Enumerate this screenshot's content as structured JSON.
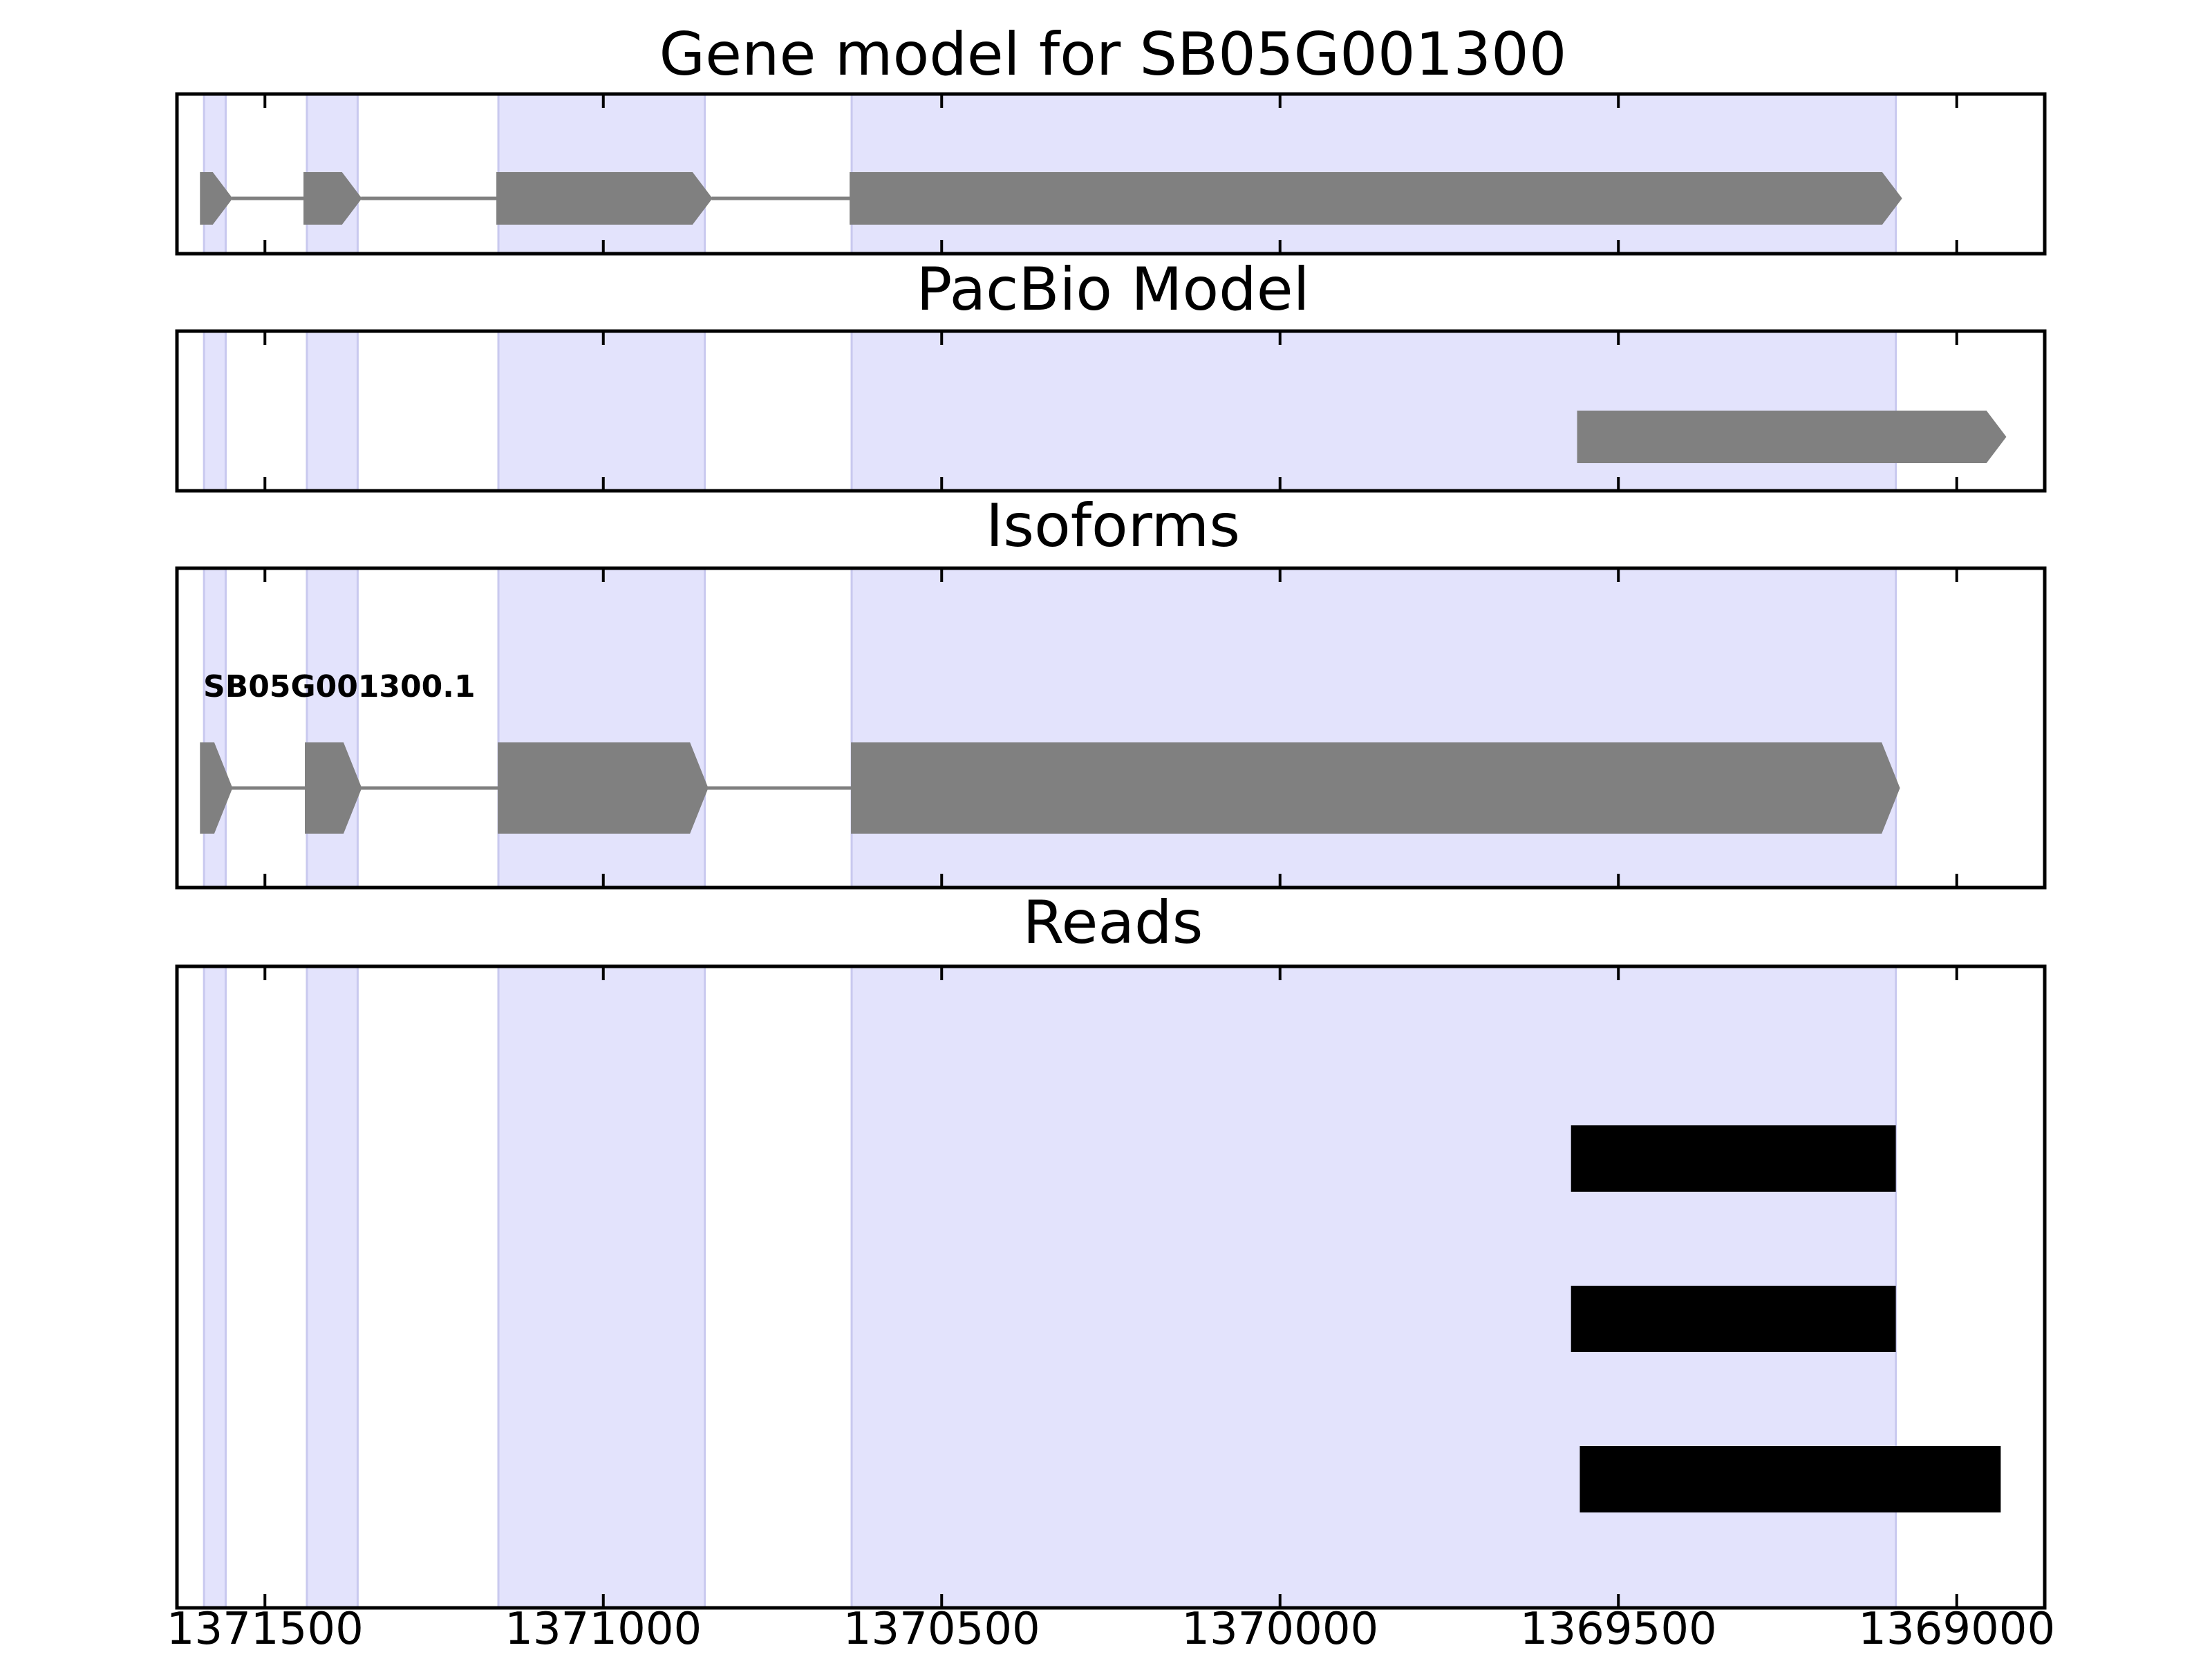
{
  "chart_data": {
    "type": "gene-track",
    "x_axis": {
      "xlim": [
        1371630,
        1368870
      ],
      "ticks": [
        1371500,
        1371000,
        1370500,
        1370000,
        1369500,
        1369000
      ],
      "tick_labels": [
        "1371500",
        "1371000",
        "1370500",
        "1370000",
        "1369500",
        "1369000"
      ]
    },
    "colors": {
      "shade": "#e3e3fc",
      "shade_edge": "#c9c9ef",
      "feature": "#808080",
      "read": "#000000",
      "frame": "#000000"
    },
    "exon_regions": [
      [
        1371590,
        1371558
      ],
      [
        1371438,
        1371363
      ],
      [
        1371155,
        1370850
      ],
      [
        1370633,
        1369090
      ]
    ],
    "panels": [
      {
        "id": "gene-model",
        "title": "Gene model for SB05G001300",
        "features": [
          {
            "kind": "exon",
            "start": 1371595,
            "end": 1371549,
            "arrow": true
          },
          {
            "kind": "exon",
            "start": 1371442,
            "end": 1371358,
            "arrow": true
          },
          {
            "kind": "exon",
            "start": 1371157,
            "end": 1370840,
            "arrow": true
          },
          {
            "kind": "exon",
            "start": 1370635,
            "end": 1369082,
            "arrow": true
          }
        ]
      },
      {
        "id": "pacbio-model",
        "title": "PacBio Model",
        "features": [
          {
            "kind": "exon",
            "start": 1369560,
            "end": 1368928,
            "arrow": true
          }
        ]
      },
      {
        "id": "isoforms",
        "title": "Isoforms",
        "isoform_label": "SB05G001300.1",
        "features": [
          {
            "kind": "exon",
            "start": 1371595,
            "end": 1371549,
            "arrow": true
          },
          {
            "kind": "exon",
            "start": 1371440,
            "end": 1371358,
            "arrow": true
          },
          {
            "kind": "exon",
            "start": 1371155,
            "end": 1370846,
            "arrow": true
          },
          {
            "kind": "exon",
            "start": 1370633,
            "end": 1369085,
            "arrow": true
          }
        ]
      },
      {
        "id": "reads",
        "title": "Reads",
        "reads": [
          {
            "start": 1369570,
            "end": 1369090
          },
          {
            "start": 1369570,
            "end": 1369090
          },
          {
            "start": 1369557,
            "end": 1368935
          }
        ]
      }
    ]
  }
}
